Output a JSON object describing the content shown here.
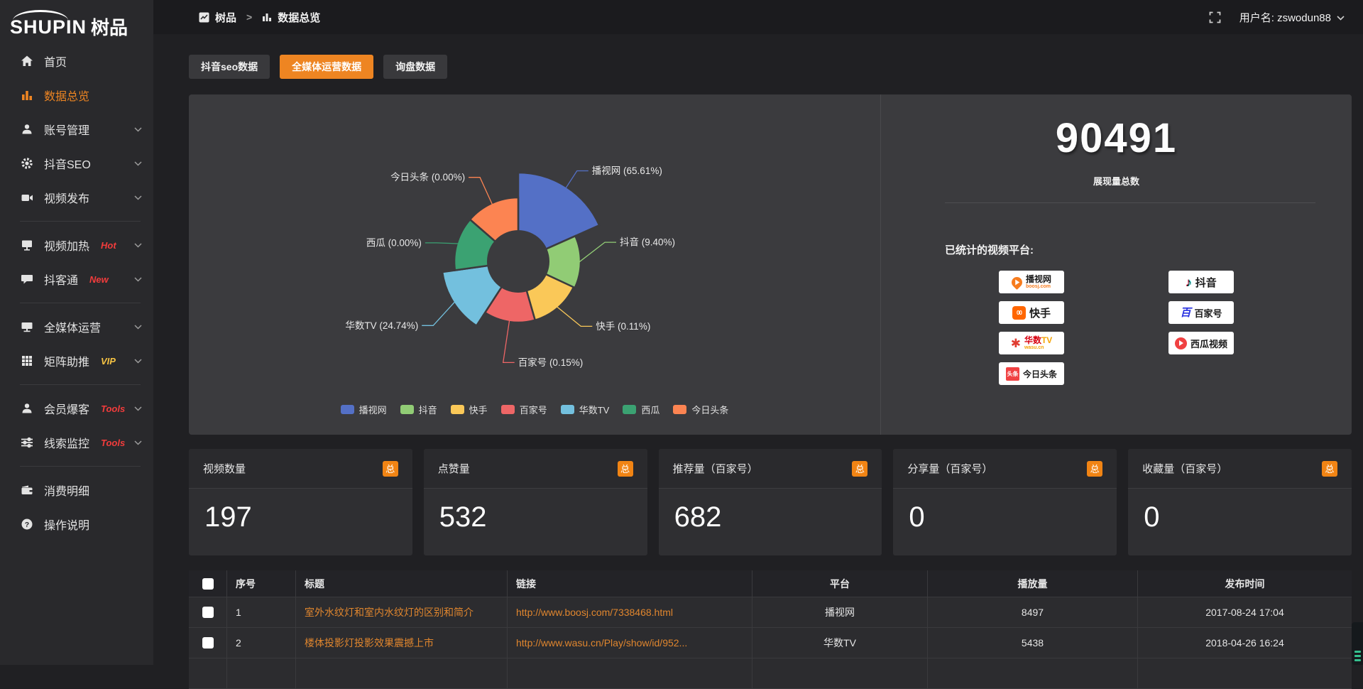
{
  "app": {
    "logo_primary": "SHUPIN",
    "logo_secondary": "树品"
  },
  "topbar": {
    "breadcrumb": [
      {
        "label": "树品",
        "icon": "trend-icon"
      },
      {
        "label": "数据总览",
        "icon": "bar-chart-icon"
      }
    ],
    "separator": ">",
    "fullscreen_icon": "fullscreen-icon",
    "username_label": "用户名: zswodun88",
    "user_chevron_icon": "chevron-down-icon"
  },
  "sidebar": {
    "items": [
      {
        "key": "home",
        "label": "首页",
        "icon": "home"
      },
      {
        "key": "data-overview",
        "label": "数据总览",
        "icon": "bar-chart",
        "active": true
      },
      {
        "key": "account-management",
        "label": "账号管理",
        "icon": "user",
        "chevron": true
      },
      {
        "key": "douyin-seo",
        "label": "抖音SEO",
        "icon": "gear",
        "chevron": true
      },
      {
        "key": "video-publish",
        "label": "视频发布",
        "icon": "video",
        "chevron": true
      },
      {
        "type": "divider"
      },
      {
        "key": "video-heat",
        "label": "视频加热",
        "icon": "screen",
        "badge": "Hot",
        "badge_color": "#f23c3c",
        "chevron": true
      },
      {
        "key": "douketong",
        "label": "抖客通",
        "icon": "chat",
        "badge": "New",
        "badge_color": "#f23c3c",
        "chevron": true
      },
      {
        "type": "divider"
      },
      {
        "key": "omnimedia-operation",
        "label": "全媒体运营",
        "icon": "monitor",
        "chevron": true
      },
      {
        "key": "matrix-boost",
        "label": "矩阵助推",
        "icon": "grid",
        "badge": "VIP",
        "badge_color": "#f6c343",
        "chevron": true
      },
      {
        "type": "divider"
      },
      {
        "key": "member-leads",
        "label": "会员爆客",
        "icon": "user",
        "badge": "Tools",
        "badge_color": "#f23c3c",
        "chevron": true
      },
      {
        "key": "clue-monitor",
        "label": "线索监控",
        "icon": "sliders",
        "badge": "Tools",
        "badge_color": "#f23c3c",
        "chevron": true
      },
      {
        "type": "divider"
      },
      {
        "key": "consumption-detail",
        "label": "消费明细",
        "icon": "wallet"
      },
      {
        "key": "operation-guide",
        "label": "操作说明",
        "icon": "question"
      }
    ]
  },
  "tabs": [
    {
      "label": "抖音seo数据",
      "active": false
    },
    {
      "label": "全媒体运营数据",
      "active": true
    },
    {
      "label": "询盘数据",
      "active": false
    }
  ],
  "chart_data": {
    "type": "pie",
    "rose": true,
    "inner_r": 44,
    "legend_position": "bottom",
    "categories": [
      "播视网",
      "抖音",
      "快手",
      "百家号",
      "华数TV",
      "西瓜",
      "今日头条"
    ],
    "values": [
      65.61,
      9.4,
      0.11,
      0.15,
      24.74,
      0.0,
      0.0
    ],
    "total_impressions": 90491,
    "series": [
      {
        "name": "播视网",
        "pct": 65.61,
        "label": "播视网 (65.61%)",
        "color": "#5470c6",
        "angle_deg": 66,
        "outer_r": 125,
        "label_r": 152,
        "side": "right",
        "label_dy": 0
      },
      {
        "name": "抖音",
        "pct": 9.4,
        "label": "抖音 (9.40%)",
        "color": "#91cc75",
        "angle_deg": 49,
        "outer_r": 88,
        "label_r": 122,
        "side": "right",
        "label_dy": -28
      },
      {
        "name": "快手",
        "pct": 0.11,
        "label": "快手 (0.11%)",
        "color": "#fac858",
        "angle_deg": 49,
        "outer_r": 86,
        "label_r": 136,
        "side": "right",
        "label_dy": -12
      },
      {
        "name": "百家号",
        "pct": 0.15,
        "label": "百家号 (0.15%)",
        "color": "#ee6666",
        "angle_deg": 49,
        "outer_r": 86,
        "label_r": 144,
        "side": "right",
        "label_dy": 0
      },
      {
        "name": "华数TV",
        "pct": 24.74,
        "label": "华数TV (24.74%)",
        "color": "#73c0de",
        "angle_deg": 49,
        "outer_r": 108,
        "label_r": 142,
        "side": "left",
        "label_dy": 14
      },
      {
        "name": "西瓜",
        "pct": 0.0,
        "label": "西瓜 (0.00%)",
        "color": "#3ba272",
        "angle_deg": 49,
        "outer_r": 90,
        "label_r": 120,
        "side": "left",
        "label_dy": 8
      },
      {
        "name": "今日头条",
        "pct": 0.0,
        "label": "今日头条 (0.00%)",
        "color": "#fc8452",
        "angle_deg": 49,
        "outer_r": 90,
        "label_r": 130,
        "side": "left",
        "label_dy": 0
      }
    ]
  },
  "summary": {
    "total_value": "90491",
    "total_label": "展现量总数",
    "platforms_label": "已统计的视频平台:",
    "platforms": [
      {
        "name": "播视网",
        "sub": "boosj.com",
        "style": "boosj",
        "col": 0,
        "row": 0
      },
      {
        "name": "快手",
        "style": "ks",
        "col": 0,
        "row": 1
      },
      {
        "name": "华数TV",
        "sub": "wasu.cn",
        "style": "wasu",
        "col": 0,
        "row": 2
      },
      {
        "name": "今日头条",
        "badge": "头条",
        "style": "tt",
        "col": 0,
        "row": 3
      },
      {
        "name": "抖音",
        "style": "dy",
        "col": 1,
        "row": 0
      },
      {
        "name": "百家号",
        "badge": "百",
        "style": "bjh",
        "col": 1,
        "row": 1
      },
      {
        "name": "西瓜视频",
        "style": "xg",
        "col": 1,
        "row": 2
      }
    ]
  },
  "stat_cards": [
    {
      "label": "视频数量",
      "badge": "总",
      "value": "197"
    },
    {
      "label": "点赞量",
      "badge": "总",
      "value": "532"
    },
    {
      "label": "推荐量（百家号）",
      "badge": "总",
      "value": "682"
    },
    {
      "label": "分享量（百家号）",
      "badge": "总",
      "value": "0"
    },
    {
      "label": "收藏量（百家号）",
      "badge": "总",
      "value": "0"
    }
  ],
  "table": {
    "headers": [
      "序号",
      "标题",
      "链接",
      "平台",
      "播放量",
      "发布时间"
    ],
    "rows": [
      {
        "num": "1",
        "title": "室外水纹灯和室内水纹灯的区别和简介",
        "link": "http://www.boosj.com/7338468.html",
        "platform": "播视网",
        "views": "8497",
        "time": "2017-08-24 17:04"
      },
      {
        "num": "2",
        "title": "楼体投影灯投影效果震撼上市",
        "link": "http://www.wasu.cn/Play/show/id/952...",
        "platform": "华数TV",
        "views": "5438",
        "time": "2018-04-26 16:24"
      }
    ]
  },
  "colors": {
    "accent": "#ee8522",
    "badge_orange": "#f18414",
    "link_orange": "#e0862e",
    "panel_bg": "#3b3b3e",
    "hot_red": "#f23c3c",
    "vip_yellow": "#f6c343"
  }
}
